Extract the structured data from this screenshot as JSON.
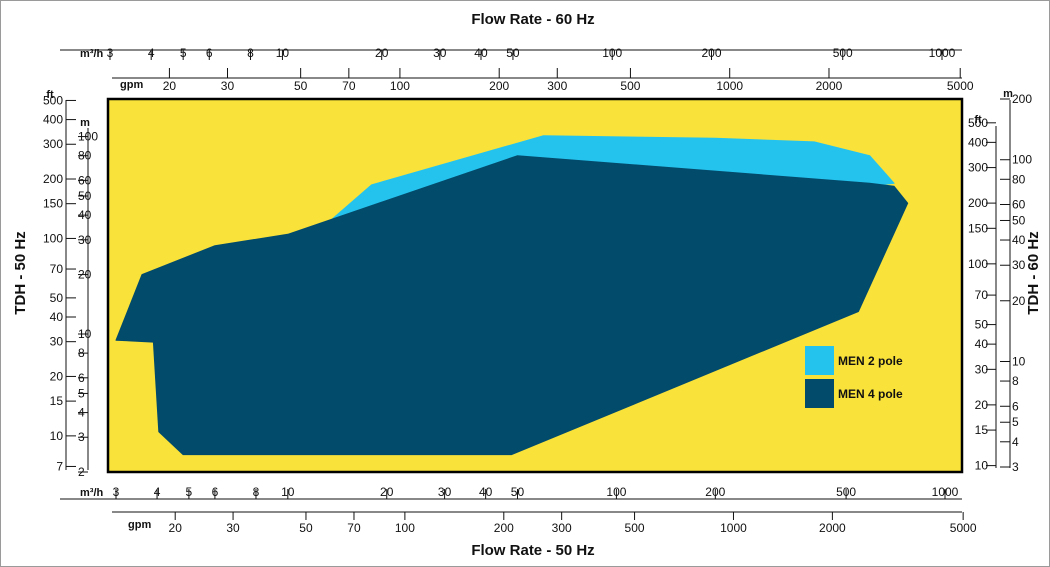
{
  "chart_data": {
    "type": "area",
    "title": "",
    "colors": {
      "background": "#f9e23a",
      "frame": "#000000",
      "two_pole": "#24c3ee",
      "four_pole": "#034b6b"
    },
    "x_axis_top": {
      "title": "Flow Rate - 60 Hz",
      "scale": "log",
      "m3h_unit": "m³/h",
      "m3h_range": [
        3,
        1000
      ],
      "m3h_ticks": [
        3,
        4,
        5,
        6,
        8,
        10,
        20,
        30,
        40,
        50,
        100,
        200,
        500,
        1000
      ],
      "gpm_unit": "gpm",
      "gpm_ticks": [
        20,
        30,
        50,
        70,
        100,
        200,
        300,
        500,
        1000,
        2000,
        5000
      ]
    },
    "x_axis_bottom": {
      "title": "Flow Rate - 50 Hz",
      "scale": "log",
      "m3h_unit": "m³/h",
      "m3h_range": [
        3,
        1000
      ],
      "m3h_ticks": [
        3,
        4,
        5,
        6,
        8,
        10,
        20,
        30,
        40,
        50,
        100,
        200,
        500,
        1000
      ],
      "gpm_unit": "gpm",
      "gpm_ticks": [
        20,
        30,
        50,
        70,
        100,
        200,
        300,
        500,
        1000,
        2000,
        5000
      ]
    },
    "y_axis_left": {
      "title": "TDH - 50 Hz",
      "scale": "log",
      "m_unit": "m",
      "m_range": [
        2,
        155
      ],
      "m_ticks": [
        2,
        3,
        4,
        5,
        6,
        8,
        10,
        20,
        30,
        40,
        50,
        60,
        80,
        100
      ],
      "ft_unit": "ft",
      "ft_ticks": [
        7,
        10,
        15,
        20,
        30,
        40,
        50,
        70,
        100,
        150,
        200,
        300,
        400,
        500
      ]
    },
    "y_axis_right": {
      "title": "TDH - 60 Hz",
      "scale": "log",
      "m_unit": "m",
      "m_range": [
        3,
        200
      ],
      "m_ticks": [
        3,
        4,
        5,
        6,
        8,
        10,
        20,
        30,
        40,
        50,
        60,
        80,
        100,
        200
      ],
      "ft_unit": "ft",
      "ft_ticks": [
        10,
        15,
        20,
        30,
        40,
        50,
        70,
        100,
        150,
        200,
        300,
        400,
        500
      ]
    },
    "series": [
      {
        "name": "MEN 2 pole",
        "x_m3h": [
          11,
          18,
          60,
          200,
          400,
          590,
          700
        ],
        "y_m": [
          28,
          57,
          101,
          98,
          94,
          80,
          58
        ]
      },
      {
        "name": "MEN 4 pole",
        "x_m3h": [
          3,
          3.6,
          6,
          10,
          50,
          590,
          700,
          770,
          545,
          48,
          4.8,
          4.05,
          3.9,
          3
        ],
        "y_m": [
          9.3,
          20,
          28,
          32,
          80,
          58,
          56,
          46,
          13,
          2.45,
          2.45,
          3.2,
          9.1,
          9.3
        ]
      }
    ],
    "legend": {
      "position": "right",
      "items": [
        {
          "label": "MEN 2 pole",
          "color": "#24c3ee"
        },
        {
          "label": "MEN 4 pole",
          "color": "#034b6b"
        }
      ]
    }
  }
}
